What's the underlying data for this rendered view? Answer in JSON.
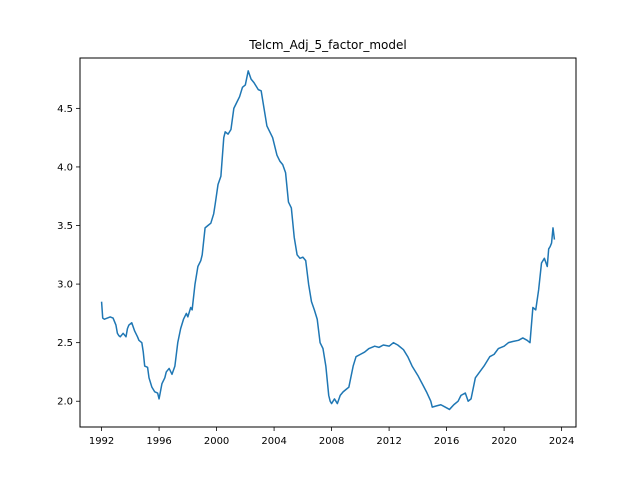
{
  "chart_data": {
    "type": "line",
    "title": "Telcm_Adj_5_factor_model",
    "xlabel": "",
    "ylabel": "",
    "xlim": [
      1990.5,
      2025.0
    ],
    "ylim": [
      1.78,
      4.93
    ],
    "xticks": [
      1992,
      1996,
      2000,
      2004,
      2008,
      2012,
      2016,
      2020,
      2024
    ],
    "yticks": [
      2.0,
      2.5,
      3.0,
      3.5,
      4.0,
      4.5
    ],
    "ytick_labels": [
      "2.0",
      "2.5",
      "3.0",
      "3.5",
      "4.0",
      "4.5"
    ],
    "grid": false,
    "line_color": "#1f77b4",
    "series": [
      {
        "x": [
          1992.0,
          1992.08,
          1992.2,
          1992.4,
          1992.6,
          1992.8,
          1993.0,
          1993.1,
          1993.2,
          1993.3,
          1993.5,
          1993.7,
          1993.8,
          1993.9,
          1994.1,
          1994.3,
          1994.5,
          1994.6,
          1994.8,
          1994.9,
          1995.0,
          1995.2,
          1995.3,
          1995.5,
          1995.7,
          1995.9,
          1996.0,
          1996.2,
          1996.4,
          1996.5,
          1996.7,
          1996.9,
          1997.1,
          1997.3,
          1997.5,
          1997.7,
          1997.9,
          1998.0,
          1998.2,
          1998.3,
          1998.5,
          1998.7,
          1998.9,
          1999.0,
          1999.2,
          1999.4,
          1999.6,
          1999.8,
          1999.9,
          2000.1,
          2000.3,
          2000.5,
          2000.6,
          2000.8,
          2001.0,
          2001.2,
          2001.4,
          2001.6,
          2001.8,
          2002.0,
          2002.2,
          2002.4,
          2002.6,
          2002.8,
          2002.9,
          2003.1,
          2003.3,
          2003.5,
          2003.7,
          2003.9,
          2004.0,
          2004.2,
          2004.4,
          2004.6,
          2004.8,
          2005.0,
          2005.2,
          2005.4,
          2005.6,
          2005.8,
          2006.0,
          2006.2,
          2006.4,
          2006.6,
          2006.8,
          2007.0,
          2007.2,
          2007.4,
          2007.6,
          2007.8,
          2007.9,
          2008.0,
          2008.2,
          2008.4,
          2008.6,
          2008.8,
          2009.0,
          2009.2,
          2009.5,
          2009.7,
          2010.0,
          2010.3,
          2010.6,
          2011.0,
          2011.3,
          2011.6,
          2012.0,
          2012.3,
          2012.6,
          2013.0,
          2013.3,
          2013.6,
          2014.0,
          2014.3,
          2014.6,
          2014.9,
          2015.0,
          2015.3,
          2015.6,
          2015.9,
          2016.2,
          2016.5,
          2016.8,
          2017.0,
          2017.3,
          2017.5,
          2017.7,
          2018.0,
          2018.3,
          2018.6,
          2019.0,
          2019.3,
          2019.6,
          2020.0,
          2020.3,
          2020.6,
          2021.0,
          2021.3,
          2021.6,
          2021.8,
          2022.0,
          2022.2,
          2022.4,
          2022.6,
          2022.8,
          2023.0,
          2023.1,
          2023.2,
          2023.3,
          2023.4,
          2023.5
        ],
        "y": [
          2.85,
          2.71,
          2.7,
          2.71,
          2.72,
          2.71,
          2.65,
          2.58,
          2.56,
          2.55,
          2.58,
          2.55,
          2.62,
          2.65,
          2.67,
          2.6,
          2.55,
          2.52,
          2.5,
          2.42,
          2.3,
          2.29,
          2.2,
          2.12,
          2.08,
          2.07,
          2.02,
          2.15,
          2.2,
          2.25,
          2.28,
          2.23,
          2.3,
          2.5,
          2.62,
          2.7,
          2.75,
          2.72,
          2.8,
          2.78,
          3.0,
          3.15,
          3.2,
          3.25,
          3.48,
          3.5,
          3.52,
          3.6,
          3.68,
          3.85,
          3.92,
          4.25,
          4.3,
          4.28,
          4.32,
          4.5,
          4.55,
          4.6,
          4.68,
          4.7,
          4.82,
          4.75,
          4.72,
          4.68,
          4.66,
          4.65,
          4.5,
          4.35,
          4.3,
          4.25,
          4.2,
          4.1,
          4.05,
          4.02,
          3.95,
          3.7,
          3.65,
          3.4,
          3.25,
          3.22,
          3.23,
          3.2,
          3.0,
          2.85,
          2.78,
          2.7,
          2.5,
          2.45,
          2.3,
          2.05,
          2.0,
          1.98,
          2.02,
          1.98,
          2.05,
          2.08,
          2.1,
          2.12,
          2.3,
          2.38,
          2.4,
          2.42,
          2.45,
          2.47,
          2.46,
          2.48,
          2.47,
          2.5,
          2.48,
          2.44,
          2.38,
          2.3,
          2.22,
          2.15,
          2.08,
          2.0,
          1.95,
          1.96,
          1.97,
          1.95,
          1.93,
          1.97,
          2.0,
          2.05,
          2.07,
          2.0,
          2.02,
          2.2,
          2.25,
          2.3,
          2.38,
          2.4,
          2.45,
          2.47,
          2.5,
          2.51,
          2.52,
          2.54,
          2.52,
          2.5,
          2.8,
          2.78,
          2.95,
          3.18,
          3.22,
          3.15,
          3.3,
          3.32,
          3.35,
          3.48,
          3.38
        ]
      }
    ]
  }
}
